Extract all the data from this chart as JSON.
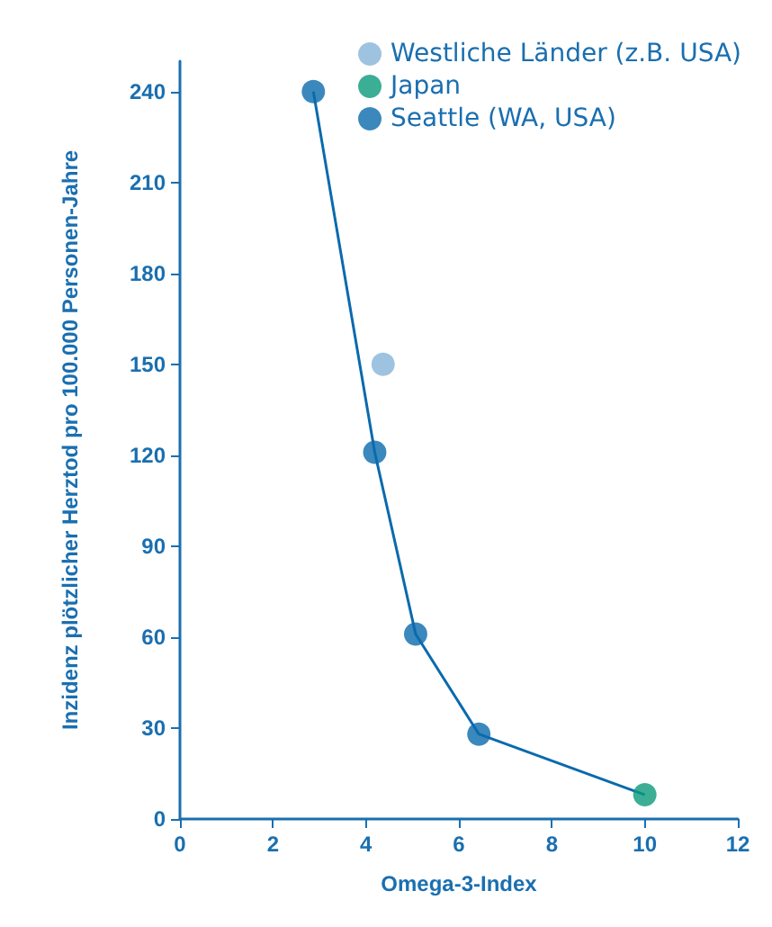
{
  "chart_data": {
    "type": "scatter",
    "xlabel": "Omega-3-Index",
    "ylabel": "Inzidenz plötzlicher Herztod pro 100.000 Personen-Jahre",
    "xlim": [
      0,
      12
    ],
    "xticks": [
      0,
      2,
      4,
      6,
      8,
      10,
      12
    ],
    "ylim": [
      0,
      250
    ],
    "yticks": [
      0,
      30,
      60,
      90,
      120,
      150,
      180,
      210,
      240
    ],
    "grid": false,
    "legend": "top right",
    "marker": "circle",
    "series": [
      {
        "type": "line",
        "color": "#0a6aad",
        "marker": "none",
        "x": [
          2.87,
          4.19,
          5.07,
          6.43,
          10
        ],
        "values": [
          240,
          121,
          61,
          28,
          8
        ]
      },
      {
        "name": "Westliche Länder (z.B. USA)",
        "color": "#86b4d8",
        "x": [
          4.37
        ],
        "values": [
          150
        ]
      },
      {
        "name": "Japan",
        "color": "#0a9a7a",
        "x": [
          10
        ],
        "values": [
          8
        ]
      },
      {
        "name": "Seattle (WA, USA)",
        "color": "#0a6aad",
        "x": [
          2.87,
          4.19,
          5.07,
          6.43
        ],
        "values": [
          240,
          121,
          61,
          28
        ]
      }
    ]
  }
}
